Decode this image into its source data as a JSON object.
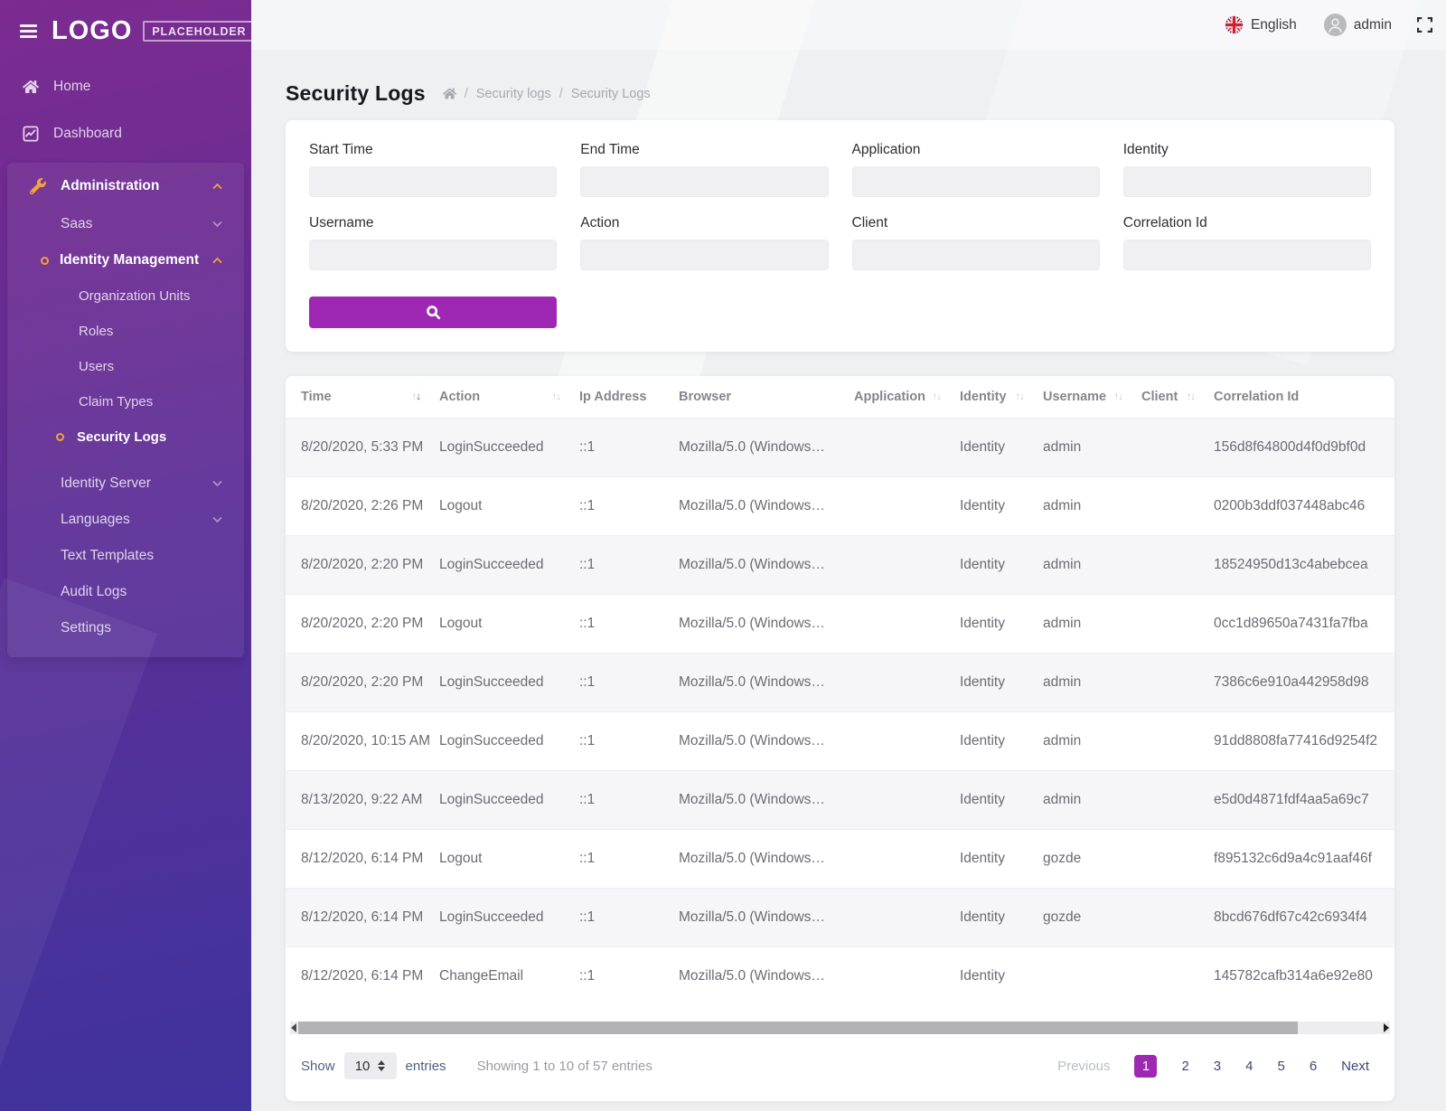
{
  "topbar": {
    "language": "English",
    "user": "admin"
  },
  "sidebar": {
    "logo_main": "LOGO",
    "logo_badge": "PLACEHOLDER",
    "home": "Home",
    "dashboard": "Dashboard",
    "administration": "Administration",
    "saas": "Saas",
    "identity_management": "Identity Management",
    "organization_units": "Organization Units",
    "roles": "Roles",
    "users": "Users",
    "claim_types": "Claim Types",
    "security_logs": "Security Logs",
    "identity_server": "Identity Server",
    "languages": "Languages",
    "text_templates": "Text Templates",
    "audit_logs": "Audit Logs",
    "settings": "Settings"
  },
  "page": {
    "title": "Security Logs",
    "breadcrumb": {
      "separator": "/",
      "item1": "Security logs",
      "item2": "Security Logs"
    }
  },
  "filters": {
    "fields": [
      {
        "label": "Start Time"
      },
      {
        "label": "End Time"
      },
      {
        "label": "Application"
      },
      {
        "label": "Identity"
      },
      {
        "label": "Username"
      },
      {
        "label": "Action"
      },
      {
        "label": "Client"
      },
      {
        "label": "Correlation Id"
      }
    ]
  },
  "table": {
    "columns": [
      {
        "label": "Time",
        "sort": "desc"
      },
      {
        "label": "Action",
        "sort": "none"
      },
      {
        "label": "Ip Address"
      },
      {
        "label": "Browser"
      },
      {
        "label": "Application",
        "sort": "none"
      },
      {
        "label": "Identity",
        "sort": "none"
      },
      {
        "label": "Username",
        "sort": "none"
      },
      {
        "label": "Client",
        "sort": "none"
      },
      {
        "label": "Correlation Id"
      }
    ],
    "rows": [
      [
        "8/20/2020, 5:33 PM",
        "LoginSucceeded",
        "::1",
        "Mozilla/5.0 (Windows…",
        "",
        "Identity",
        "admin",
        "",
        "156d8f64800d4f0d9bf0d"
      ],
      [
        "8/20/2020, 2:26 PM",
        "Logout",
        "::1",
        "Mozilla/5.0 (Windows…",
        "",
        "Identity",
        "admin",
        "",
        "0200b3ddf037448abc46"
      ],
      [
        "8/20/2020, 2:20 PM",
        "LoginSucceeded",
        "::1",
        "Mozilla/5.0 (Windows…",
        "",
        "Identity",
        "admin",
        "",
        "18524950d13c4abebcea"
      ],
      [
        "8/20/2020, 2:20 PM",
        "Logout",
        "::1",
        "Mozilla/5.0 (Windows…",
        "",
        "Identity",
        "admin",
        "",
        "0cc1d89650a7431fa7fba"
      ],
      [
        "8/20/2020, 2:20 PM",
        "LoginSucceeded",
        "::1",
        "Mozilla/5.0 (Windows…",
        "",
        "Identity",
        "admin",
        "",
        "7386c6e910a442958d98"
      ],
      [
        "8/20/2020, 10:15 AM",
        "LoginSucceeded",
        "::1",
        "Mozilla/5.0 (Windows…",
        "",
        "Identity",
        "admin",
        "",
        "91dd8808fa77416d9254f2"
      ],
      [
        "8/13/2020, 9:22 AM",
        "LoginSucceeded",
        "::1",
        "Mozilla/5.0 (Windows…",
        "",
        "Identity",
        "admin",
        "",
        "e5d0d4871fdf4aa5a69c7"
      ],
      [
        "8/12/2020, 6:14 PM",
        "Logout",
        "::1",
        "Mozilla/5.0 (Windows…",
        "",
        "Identity",
        "gozde",
        "",
        "f895132c6d9a4c91aaf46f"
      ],
      [
        "8/12/2020, 6:14 PM",
        "LoginSucceeded",
        "::1",
        "Mozilla/5.0 (Windows…",
        "",
        "Identity",
        "gozde",
        "",
        "8bcd676df67c42c6934f4"
      ],
      [
        "8/12/2020, 6:14 PM",
        "ChangeEmail",
        "::1",
        "Mozilla/5.0 (Windows…",
        "",
        "Identity",
        "",
        "",
        "145782cafb314a6e92e80"
      ]
    ]
  },
  "footer": {
    "show_label": "Show",
    "page_size": "10",
    "entries_label": "entries",
    "summary": "Showing 1 to 10 of 57 entries",
    "pagination": {
      "previous": "Previous",
      "pages": [
        "1",
        "2",
        "3",
        "4",
        "5",
        "6"
      ],
      "active_page": "1",
      "next": "Next"
    }
  },
  "colors": {
    "accent_purple": "#9e27b4",
    "sidebar_gradient_top": "#7c2b90",
    "sidebar_gradient_bottom": "#3f339d",
    "icon_orange": "#f2a33c",
    "page_background": "#eef0f1"
  }
}
